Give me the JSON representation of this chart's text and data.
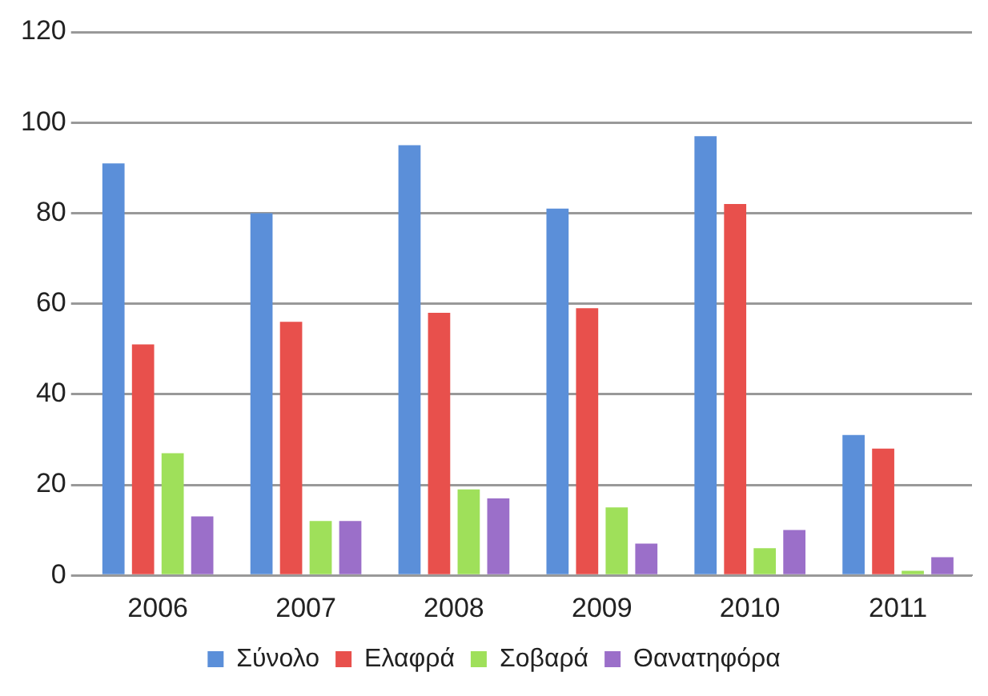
{
  "chart_data": {
    "type": "bar",
    "categories": [
      "2006",
      "2007",
      "2008",
      "2009",
      "2010",
      "2011"
    ],
    "series": [
      {
        "name": "Σύνολο",
        "color": "#5b8fd9",
        "values": [
          91,
          80,
          95,
          81,
          97,
          31
        ]
      },
      {
        "name": "Ελαφρά",
        "color": "#e8504c",
        "values": [
          51,
          56,
          58,
          59,
          82,
          28
        ]
      },
      {
        "name": "Σοβαρά",
        "color": "#9fe05a",
        "values": [
          27,
          12,
          19,
          15,
          6,
          1
        ]
      },
      {
        "name": "Θανατηφόρα",
        "color": "#9b6fc9",
        "values": [
          13,
          12,
          17,
          7,
          10,
          4
        ]
      }
    ],
    "ylim": [
      0,
      120
    ],
    "yticks": [
      0,
      20,
      40,
      60,
      80,
      100,
      120
    ],
    "grid": "y",
    "legend": "bottom"
  }
}
